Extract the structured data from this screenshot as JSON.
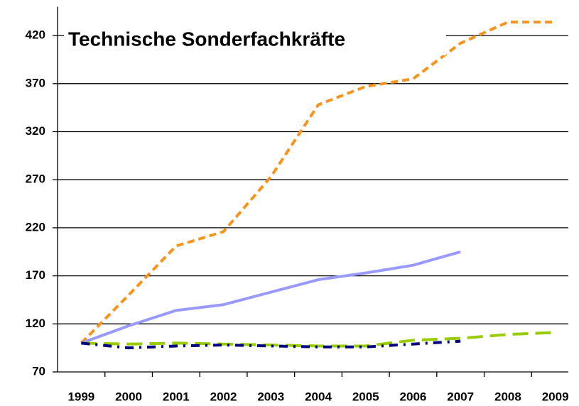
{
  "chart_data": {
    "type": "line",
    "title": "Technische Sonderfachkräfte",
    "categories": [
      "1999",
      "2000",
      "2001",
      "2002",
      "2003",
      "2004",
      "2005",
      "2006",
      "2007",
      "2008",
      "2009"
    ],
    "series": [
      {
        "color": "#f7941d",
        "dash": "10 6",
        "values": [
          100,
          150,
          201,
          216,
          273,
          348,
          367,
          375,
          412,
          434,
          434
        ]
      },
      {
        "color": "#9999ff",
        "dash": "none",
        "values": [
          100,
          118,
          134,
          140,
          153,
          166,
          173,
          181,
          195,
          null,
          null
        ]
      },
      {
        "color": "#99cc00",
        "dash": "22 10",
        "values": [
          100,
          99,
          100,
          99,
          98,
          97,
          97,
          103,
          105,
          109,
          111
        ]
      },
      {
        "color": "#000080",
        "dash": "12 8 3 8",
        "values": [
          100,
          95,
          97,
          98,
          97,
          96,
          96,
          99,
          102,
          null,
          null
        ]
      }
    ],
    "ylim": [
      70,
      450
    ],
    "yticks": [
      70,
      120,
      170,
      220,
      270,
      320,
      370,
      420
    ],
    "grid": true
  }
}
